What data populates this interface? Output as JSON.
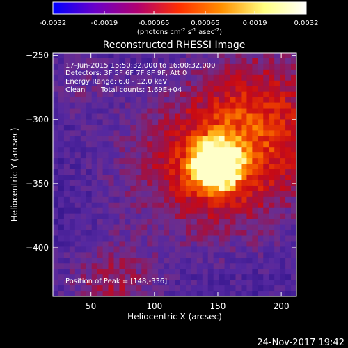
{
  "window": {
    "date_stamp": "24-Nov-2017 19:42"
  },
  "colorbar": {
    "tick_labels": [
      "-0.0032",
      "-0.0019",
      "-0.00065",
      "0.00065",
      "0.0019",
      "0.0032"
    ],
    "tick_values": [
      -0.0032,
      -0.0019,
      -0.00065,
      0.00065,
      0.0019,
      0.0032
    ],
    "range": [
      -0.0032,
      0.0032
    ],
    "unit_label_parts": [
      "(photons cm",
      "-2",
      " s",
      "-1",
      " asec",
      "-2",
      ")"
    ],
    "gradient_stops": [
      "#0000ff",
      "#6a00c8",
      "#b00070",
      "#ff3000",
      "#ff9000",
      "#ffff80",
      "#ffffff"
    ]
  },
  "chart_data": {
    "type": "heatmap",
    "title": "Reconstructed RHESSI Image",
    "xlabel": "Heliocentric X (arcsec)",
    "ylabel": "Heliocentric Y (arcsec)",
    "xlim": [
      20,
      212
    ],
    "ylim": [
      -438,
      -248
    ],
    "x_ticks": [
      50,
      100,
      150,
      200
    ],
    "y_ticks": [
      -250,
      -300,
      -350,
      -400
    ],
    "x_tick_labels": [
      "50",
      "100",
      "150",
      "200"
    ],
    "y_tick_labels": [
      "−250",
      "−300",
      "−350",
      "−400"
    ],
    "peak": [
      148,
      -336
    ],
    "annotations": {
      "time_range": "17-Jun-2015 15:50:32.000 to 16:00:32.000",
      "detectors": "Detectors: 3F 5F 6F 7F 8F 9F, Att 0",
      "energy_range": "Energy Range: 6.0 - 12.0 keV",
      "clean": "Clean",
      "total_counts": "Total counts: 1.69E+04",
      "position_of_peak": "Position of Peak = [148,-336]"
    }
  }
}
